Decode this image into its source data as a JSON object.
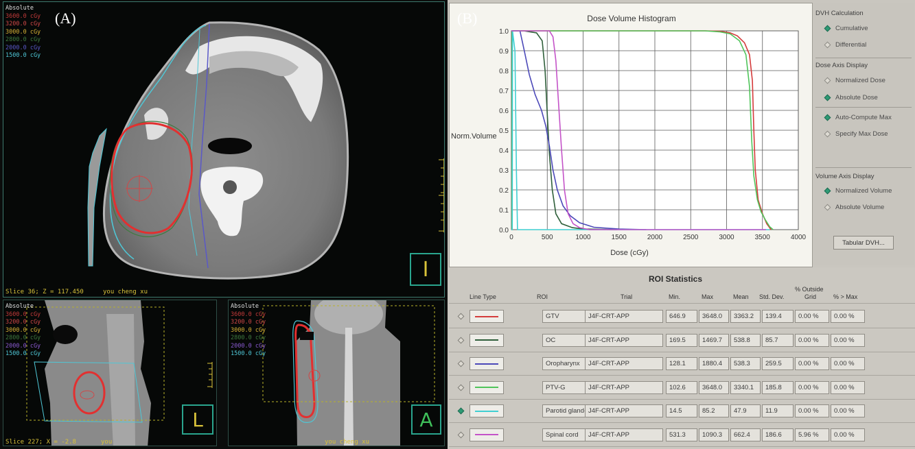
{
  "panel_a": {
    "label": "(A)",
    "axial": {
      "legend_title": "Absolute",
      "isodoses": [
        {
          "label": "3600.0 cGy",
          "color": "#c23a3a"
        },
        {
          "label": "3200.0 cGy",
          "color": "#d04848"
        },
        {
          "label": "3000.0 cGy",
          "color": "#d8b236"
        },
        {
          "label": "2800.0 cGy",
          "color": "#3f7a3f"
        },
        {
          "label": "2000.0 cGy",
          "color": "#5a58c8"
        },
        {
          "label": "1500.0 cGy",
          "color": "#4fc7d6"
        }
      ],
      "slice_info": "Slice 36; Z = 117.450",
      "patient": "you cheng xu",
      "orientation": "I"
    },
    "sagittal": {
      "legend_title": "Absolute",
      "isodoses": [
        {
          "label": "3600.0 cGy",
          "color": "#c23a3a"
        },
        {
          "label": "3200.0 cGy",
          "color": "#d04848"
        },
        {
          "label": "3000.0 cGy",
          "color": "#d8b236"
        },
        {
          "label": "2800.0 cGy",
          "color": "#3f7a3f"
        },
        {
          "label": "2000.0 cGy",
          "color": "#8a5ad0"
        },
        {
          "label": "1500.0 cGy",
          "color": "#4fc7d6"
        }
      ],
      "slice_info": "Slice 227; X = -2.8",
      "patient": "you",
      "orientation": "L"
    },
    "coronal": {
      "legend_title": "Absolute",
      "isodoses": [
        {
          "label": "3600.0 cGy",
          "color": "#c23a3a"
        },
        {
          "label": "3200.0 cGy",
          "color": "#d04848"
        },
        {
          "label": "3000.0 cGy",
          "color": "#d8b236"
        },
        {
          "label": "2800.0 cGy",
          "color": "#3f7a3f"
        },
        {
          "label": "2000.0 cGy",
          "color": "#8a5ad0"
        },
        {
          "label": "1500.0 cGy",
          "color": "#4fc7d6"
        }
      ],
      "patient": "you cheng xu",
      "orientation": "A"
    }
  },
  "panel_b": {
    "label": "(B)",
    "side_panel": {
      "dvh_calc_title": "DVH Calculation",
      "cumulative": "Cumulative",
      "differential": "Differential",
      "dose_axis_title": "Dose Axis Display",
      "normalized_dose": "Normalized Dose",
      "absolute_dose": "Absolute Dose",
      "auto_compute": "Auto-Compute Max",
      "specify_max": "Specify Max Dose",
      "volume_axis_title": "Volume Axis Display",
      "normalized_volume": "Normalized Volume",
      "absolute_volume": "Absolute Volume",
      "tabular_button": "Tabular DVH..."
    },
    "roi_stats": {
      "title": "ROI Statistics",
      "headers": {
        "line_type": "Line Type",
        "roi": "ROI",
        "trial": "Trial",
        "min": "Min.",
        "max": "Max",
        "mean": "Mean",
        "std": "Std. Dev.",
        "outside_1": "% Outside",
        "outside_2": "Grid",
        "gt_max": "% > Max"
      },
      "rows": [
        {
          "roi": "GTV",
          "trial": "J4F-CRT-APP",
          "min": "646.9",
          "max": "3648.0",
          "mean": "3363.2",
          "std": "139.4",
          "outside": "0.00 %",
          "gtmax": "0.00 %",
          "color": "#d43b3b",
          "selected": false
        },
        {
          "roi": "OC",
          "trial": "J4F-CRT-APP",
          "min": "169.5",
          "max": "1469.7",
          "mean": "538.8",
          "std": "85.7",
          "outside": "0.00 %",
          "gtmax": "0.00 %",
          "color": "#2f5f3a",
          "selected": false
        },
        {
          "roi": "Oropharynx",
          "trial": "J4F-CRT-APP",
          "min": "128.1",
          "max": "1880.4",
          "mean": "538.3",
          "std": "259.5",
          "outside": "0.00 %",
          "gtmax": "0.00 %",
          "color": "#4b48b8",
          "selected": false
        },
        {
          "roi": "PTV-G",
          "trial": "J4F-CRT-APP",
          "min": "102.6",
          "max": "3648.0",
          "mean": "3340.1",
          "std": "185.8",
          "outside": "0.00 %",
          "gtmax": "0.00 %",
          "color": "#4fc45a",
          "selected": false
        },
        {
          "roi": "Parotid gland-L",
          "trial": "J4F-CRT-APP",
          "min": "14.5",
          "max": "85.2",
          "mean": "47.9",
          "std": "11.9",
          "outside": "0.00 %",
          "gtmax": "0.00 %",
          "color": "#3fcfd2",
          "selected": true
        },
        {
          "roi": "Spinal cord",
          "trial": "J4F-CRT-APP",
          "min": "531.3",
          "max": "1090.3",
          "mean": "662.4",
          "std": "186.6",
          "outside": "5.96 %",
          "gtmax": "0.00 %",
          "color": "#c453c8",
          "selected": false
        }
      ]
    }
  },
  "chart_data": {
    "type": "line",
    "title": "Dose Volume Histogram",
    "xlabel": "Dose (cGy)",
    "ylabel": "Norm.Volume",
    "xlim": [
      0,
      4000
    ],
    "ylim": [
      0,
      1.0
    ],
    "xticks": [
      "0",
      "500",
      "1000",
      "1500",
      "2000",
      "2500",
      "3000",
      "3500",
      "4000"
    ],
    "yticks": [
      "0.0",
      "0.1",
      "0.2",
      "0.3",
      "0.4",
      "0.5",
      "0.6",
      "0.7",
      "0.8",
      "0.9",
      "1.0"
    ],
    "grid": true,
    "series": [
      {
        "roi": "GTV",
        "color": "#d43b3b",
        "points": [
          [
            0,
            1
          ],
          [
            2700,
            1
          ],
          [
            2900,
            0.998
          ],
          [
            3050,
            0.99
          ],
          [
            3150,
            0.975
          ],
          [
            3250,
            0.94
          ],
          [
            3320,
            0.88
          ],
          [
            3360,
            0.75
          ],
          [
            3380,
            0.5
          ],
          [
            3400,
            0.3
          ],
          [
            3440,
            0.15
          ],
          [
            3500,
            0.08
          ],
          [
            3560,
            0.03
          ],
          [
            3620,
            0.0
          ]
        ]
      },
      {
        "roi": "OC",
        "color": "#2f5f3a",
        "points": [
          [
            0,
            1
          ],
          [
            170,
            1
          ],
          [
            350,
            0.99
          ],
          [
            430,
            0.95
          ],
          [
            470,
            0.8
          ],
          [
            500,
            0.58
          ],
          [
            530,
            0.38
          ],
          [
            570,
            0.2
          ],
          [
            620,
            0.08
          ],
          [
            700,
            0.03
          ],
          [
            850,
            0.01
          ],
          [
            1000,
            0.003
          ],
          [
            1470,
            0.0
          ]
        ]
      },
      {
        "roi": "Oropharynx",
        "color": "#4b48b8",
        "points": [
          [
            0,
            1
          ],
          [
            120,
            1
          ],
          [
            180,
            0.9
          ],
          [
            250,
            0.78
          ],
          [
            330,
            0.68
          ],
          [
            420,
            0.6
          ],
          [
            480,
            0.52
          ],
          [
            530,
            0.42
          ],
          [
            580,
            0.3
          ],
          [
            640,
            0.2
          ],
          [
            720,
            0.12
          ],
          [
            820,
            0.07
          ],
          [
            950,
            0.035
          ],
          [
            1150,
            0.012
          ],
          [
            1500,
            0.003
          ],
          [
            1880,
            0.0
          ]
        ]
      },
      {
        "roi": "PTV-G",
        "color": "#4fc45a",
        "points": [
          [
            0,
            0
          ],
          [
            8,
            0
          ],
          [
            10,
            1
          ],
          [
            2700,
            1
          ],
          [
            2900,
            0.995
          ],
          [
            3050,
            0.985
          ],
          [
            3180,
            0.95
          ],
          [
            3270,
            0.88
          ],
          [
            3320,
            0.72
          ],
          [
            3350,
            0.45
          ],
          [
            3380,
            0.27
          ],
          [
            3430,
            0.15
          ],
          [
            3480,
            0.09
          ],
          [
            3540,
            0.05
          ],
          [
            3600,
            0.015
          ],
          [
            3648,
            0.0
          ]
        ]
      },
      {
        "roi": "Parotid gland-L",
        "color": "#3fcfd2",
        "points": [
          [
            0,
            0
          ],
          [
            12,
            0
          ],
          [
            15,
            1
          ],
          [
            50,
            0.9
          ],
          [
            70,
            0.3
          ],
          [
            85,
            0.0
          ],
          [
            3600,
            0.0
          ]
        ]
      },
      {
        "roi": "Spinal cord",
        "color": "#c453c8",
        "points": [
          [
            0,
            1
          ],
          [
            530,
            1
          ],
          [
            580,
            0.97
          ],
          [
            620,
            0.85
          ],
          [
            660,
            0.62
          ],
          [
            700,
            0.4
          ],
          [
            740,
            0.2
          ],
          [
            790,
            0.08
          ],
          [
            860,
            0.03
          ],
          [
            950,
            0.01
          ],
          [
            1090,
            0.0
          ],
          [
            3550,
            0.0
          ]
        ]
      }
    ]
  }
}
